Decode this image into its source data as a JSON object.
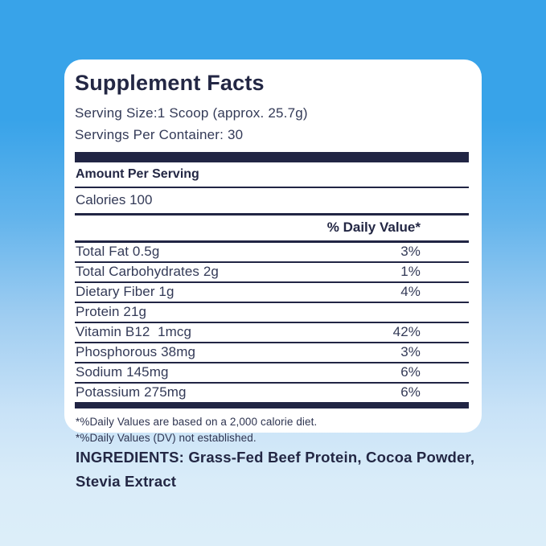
{
  "colors": {
    "background_top": "#38a3e9",
    "background_bottom": "#dceef9",
    "card_background": "#ffffff",
    "navy": "#212544"
  },
  "panel": {
    "title": "Supplement Facts",
    "serving_size": "Serving Size:1 Scoop (approx. 25.7g)",
    "servings_per_container": "Servings Per Container: 30",
    "amount_per_serving": "Amount Per Serving",
    "calories": "Calories 100",
    "daily_value_header": "% Daily Value*",
    "rows": [
      {
        "name": "Total Fat 0.5g",
        "dv": "3%"
      },
      {
        "name": "Total Carbohydrates 2g",
        "dv": "1%"
      },
      {
        "name": "Dietary Fiber 1g",
        "dv": "4%"
      },
      {
        "name": "Protein 21g",
        "dv": ""
      },
      {
        "name": "Vitamin B12  1mcg",
        "dv": "42%"
      },
      {
        "name": "Phosphorous 38mg",
        "dv": "3%"
      },
      {
        "name": "Sodium 145mg",
        "dv": "6%"
      },
      {
        "name": "Potassium 275mg",
        "dv": "6%"
      }
    ],
    "footnotes": [
      "*%Daily Values are based on a 2,000 calorie diet.",
      "*%Daily Values (DV) not established."
    ]
  },
  "ingredients": {
    "text": "INGREDIENTS: Grass-Fed Beef Protein, Cocoa Powder, Stevia Extract"
  }
}
